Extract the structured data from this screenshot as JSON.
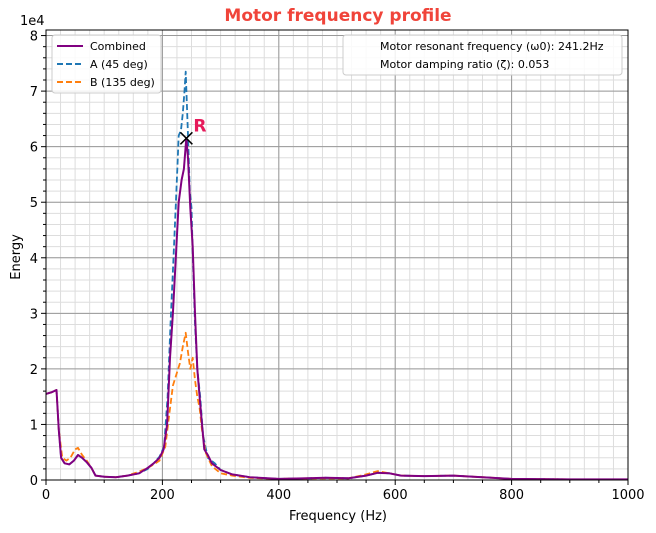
{
  "chart_data": {
    "type": "line",
    "title": "Motor frequency profile",
    "xlabel": "Frequency (Hz)",
    "ylabel": "Energy",
    "y_offset_label": "1e4",
    "xlim": [
      0,
      1000
    ],
    "ylim": [
      0,
      8.1
    ],
    "x_ticks": [
      0,
      200,
      400,
      600,
      800,
      1000
    ],
    "y_ticks": [
      0,
      1,
      2,
      3,
      4,
      5,
      6,
      7,
      8
    ],
    "grid": true,
    "minor_grid": true,
    "legend_position": "top-left",
    "series": [
      {
        "name": "Combined",
        "color": "#800080",
        "style": "solid",
        "points": [
          [
            0,
            1.55
          ],
          [
            10,
            1.58
          ],
          [
            18,
            1.62
          ],
          [
            22,
            0.9
          ],
          [
            26,
            0.4
          ],
          [
            32,
            0.3
          ],
          [
            40,
            0.28
          ],
          [
            48,
            0.35
          ],
          [
            55,
            0.45
          ],
          [
            62,
            0.4
          ],
          [
            70,
            0.32
          ],
          [
            78,
            0.22
          ],
          [
            85,
            0.08
          ],
          [
            100,
            0.06
          ],
          [
            120,
            0.05
          ],
          [
            140,
            0.08
          ],
          [
            160,
            0.12
          ],
          [
            175,
            0.22
          ],
          [
            185,
            0.3
          ],
          [
            195,
            0.4
          ],
          [
            202,
            0.55
          ],
          [
            208,
            1.0
          ],
          [
            213,
            2.2
          ],
          [
            218,
            3.0
          ],
          [
            223,
            4.0
          ],
          [
            228,
            5.0
          ],
          [
            233,
            5.4
          ],
          [
            237,
            5.6
          ],
          [
            241,
            6.15
          ],
          [
            244,
            5.8
          ],
          [
            248,
            4.9
          ],
          [
            252,
            4.2
          ],
          [
            256,
            3.0
          ],
          [
            260,
            2.0
          ],
          [
            264,
            1.5
          ],
          [
            268,
            1.0
          ],
          [
            272,
            0.55
          ],
          [
            278,
            0.45
          ],
          [
            285,
            0.3
          ],
          [
            300,
            0.18
          ],
          [
            320,
            0.1
          ],
          [
            350,
            0.05
          ],
          [
            400,
            0.02
          ],
          [
            450,
            0.03
          ],
          [
            480,
            0.04
          ],
          [
            520,
            0.03
          ],
          [
            550,
            0.08
          ],
          [
            570,
            0.13
          ],
          [
            590,
            0.12
          ],
          [
            610,
            0.08
          ],
          [
            650,
            0.07
          ],
          [
            700,
            0.08
          ],
          [
            750,
            0.05
          ],
          [
            800,
            0.02
          ],
          [
            900,
            0.01
          ],
          [
            1000,
            0.01
          ]
        ]
      },
      {
        "name": "A (45 deg)",
        "color": "#1f77b4",
        "style": "dashed",
        "points": [
          [
            0,
            1.55
          ],
          [
            10,
            1.58
          ],
          [
            18,
            1.62
          ],
          [
            22,
            0.9
          ],
          [
            26,
            0.4
          ],
          [
            32,
            0.3
          ],
          [
            40,
            0.28
          ],
          [
            48,
            0.35
          ],
          [
            55,
            0.45
          ],
          [
            62,
            0.4
          ],
          [
            70,
            0.32
          ],
          [
            78,
            0.22
          ],
          [
            85,
            0.08
          ],
          [
            100,
            0.06
          ],
          [
            120,
            0.05
          ],
          [
            140,
            0.08
          ],
          [
            160,
            0.12
          ],
          [
            175,
            0.2
          ],
          [
            185,
            0.3
          ],
          [
            195,
            0.42
          ],
          [
            203,
            0.6
          ],
          [
            209,
            1.5
          ],
          [
            214,
            2.8
          ],
          [
            219,
            4.0
          ],
          [
            224,
            5.2
          ],
          [
            228,
            6.2
          ],
          [
            232,
            6.3
          ],
          [
            235,
            6.6
          ],
          [
            238,
            7.0
          ],
          [
            240,
            7.35
          ],
          [
            242,
            6.8
          ],
          [
            244,
            6.2
          ],
          [
            247,
            5.2
          ],
          [
            250,
            4.9
          ],
          [
            253,
            3.8
          ],
          [
            256,
            2.8
          ],
          [
            260,
            2.0
          ],
          [
            265,
            1.5
          ],
          [
            270,
            0.8
          ],
          [
            278,
            0.4
          ],
          [
            290,
            0.3
          ],
          [
            300,
            0.18
          ],
          [
            320,
            0.1
          ],
          [
            350,
            0.05
          ],
          [
            400,
            0.02
          ],
          [
            450,
            0.03
          ],
          [
            480,
            0.04
          ],
          [
            520,
            0.03
          ],
          [
            550,
            0.08
          ],
          [
            570,
            0.13
          ],
          [
            590,
            0.12
          ],
          [
            610,
            0.08
          ],
          [
            650,
            0.07
          ],
          [
            700,
            0.08
          ],
          [
            750,
            0.05
          ],
          [
            800,
            0.02
          ],
          [
            900,
            0.01
          ],
          [
            1000,
            0.01
          ]
        ]
      },
      {
        "name": "B (135 deg)",
        "color": "#ff7f0e",
        "style": "dashed",
        "points": [
          [
            0,
            1.55
          ],
          [
            10,
            1.58
          ],
          [
            18,
            1.62
          ],
          [
            22,
            0.9
          ],
          [
            28,
            0.4
          ],
          [
            35,
            0.35
          ],
          [
            42,
            0.4
          ],
          [
            50,
            0.55
          ],
          [
            55,
            0.58
          ],
          [
            62,
            0.45
          ],
          [
            70,
            0.35
          ],
          [
            78,
            0.22
          ],
          [
            85,
            0.08
          ],
          [
            100,
            0.06
          ],
          [
            120,
            0.05
          ],
          [
            140,
            0.08
          ],
          [
            160,
            0.15
          ],
          [
            175,
            0.22
          ],
          [
            185,
            0.28
          ],
          [
            195,
            0.35
          ],
          [
            205,
            0.6
          ],
          [
            212,
            1.2
          ],
          [
            218,
            1.7
          ],
          [
            224,
            1.9
          ],
          [
            230,
            2.1
          ],
          [
            235,
            2.4
          ],
          [
            240,
            2.65
          ],
          [
            244,
            2.3
          ],
          [
            248,
            2.0
          ],
          [
            252,
            2.2
          ],
          [
            256,
            1.8
          ],
          [
            260,
            1.5
          ],
          [
            264,
            1.3
          ],
          [
            268,
            0.9
          ],
          [
            274,
            0.5
          ],
          [
            285,
            0.25
          ],
          [
            300,
            0.12
          ],
          [
            320,
            0.08
          ],
          [
            350,
            0.04
          ],
          [
            400,
            0.02
          ],
          [
            450,
            0.03
          ],
          [
            520,
            0.03
          ],
          [
            550,
            0.1
          ],
          [
            570,
            0.16
          ],
          [
            590,
            0.12
          ],
          [
            610,
            0.08
          ],
          [
            650,
            0.07
          ],
          [
            700,
            0.08
          ],
          [
            750,
            0.05
          ],
          [
            800,
            0.02
          ],
          [
            900,
            0.01
          ],
          [
            1000,
            0.01
          ]
        ]
      }
    ],
    "annotations": [
      {
        "label": "R",
        "x": 241.2,
        "y": 6.15,
        "color": "#e6195a"
      }
    ],
    "info_legend": [
      "Motor resonant frequency (ω0): 241.2Hz",
      "Motor damping ratio (ζ): 0.053"
    ]
  }
}
